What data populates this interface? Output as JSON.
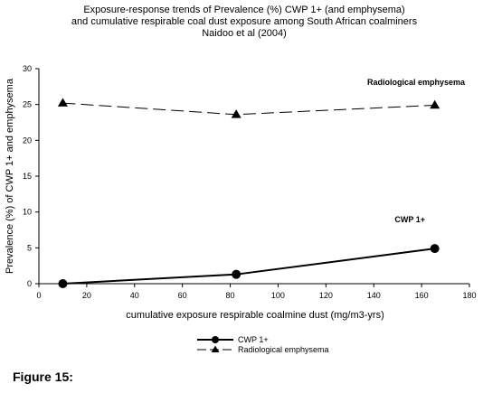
{
  "chart_data": {
    "type": "line",
    "title_lines": [
      "Exposure-response trends of Prevalence (%) CWP 1+ (and emphysema)",
      "and cumulative respirable coal dust exposure among South African coalminers",
      "Naidoo et al (2004)"
    ],
    "xlabel": "cumulative exposure respirable coalmine dust (mg/m3-yrs)",
    "ylabel": "Prevalence (%) of CWP 1+ and emphysema",
    "xlim": [
      0,
      180
    ],
    "ylim": [
      0,
      30
    ],
    "xticks": [
      "0",
      "20",
      "40",
      "60",
      "80",
      "100",
      "120",
      "140",
      "160",
      "180"
    ],
    "yticks": [
      "0",
      "5",
      "10",
      "15",
      "20",
      "25",
      "30"
    ],
    "grid": false,
    "legend_position": "bottom-center",
    "series": [
      {
        "name": "CWP 1+",
        "marker": "circle",
        "line_style": "solid",
        "x": [
          10,
          82.5,
          165.5
        ],
        "y": [
          0,
          1.3,
          4.9
        ],
        "annotation": "CWP 1+"
      },
      {
        "name": "Radiological emphysema",
        "marker": "triangle",
        "line_style": "dashed",
        "x": [
          10,
          82.5,
          165.5
        ],
        "y": [
          25.2,
          23.6,
          24.9
        ],
        "annotation": "Radiological emphysema"
      }
    ]
  },
  "figure_label": "Figure 15:"
}
